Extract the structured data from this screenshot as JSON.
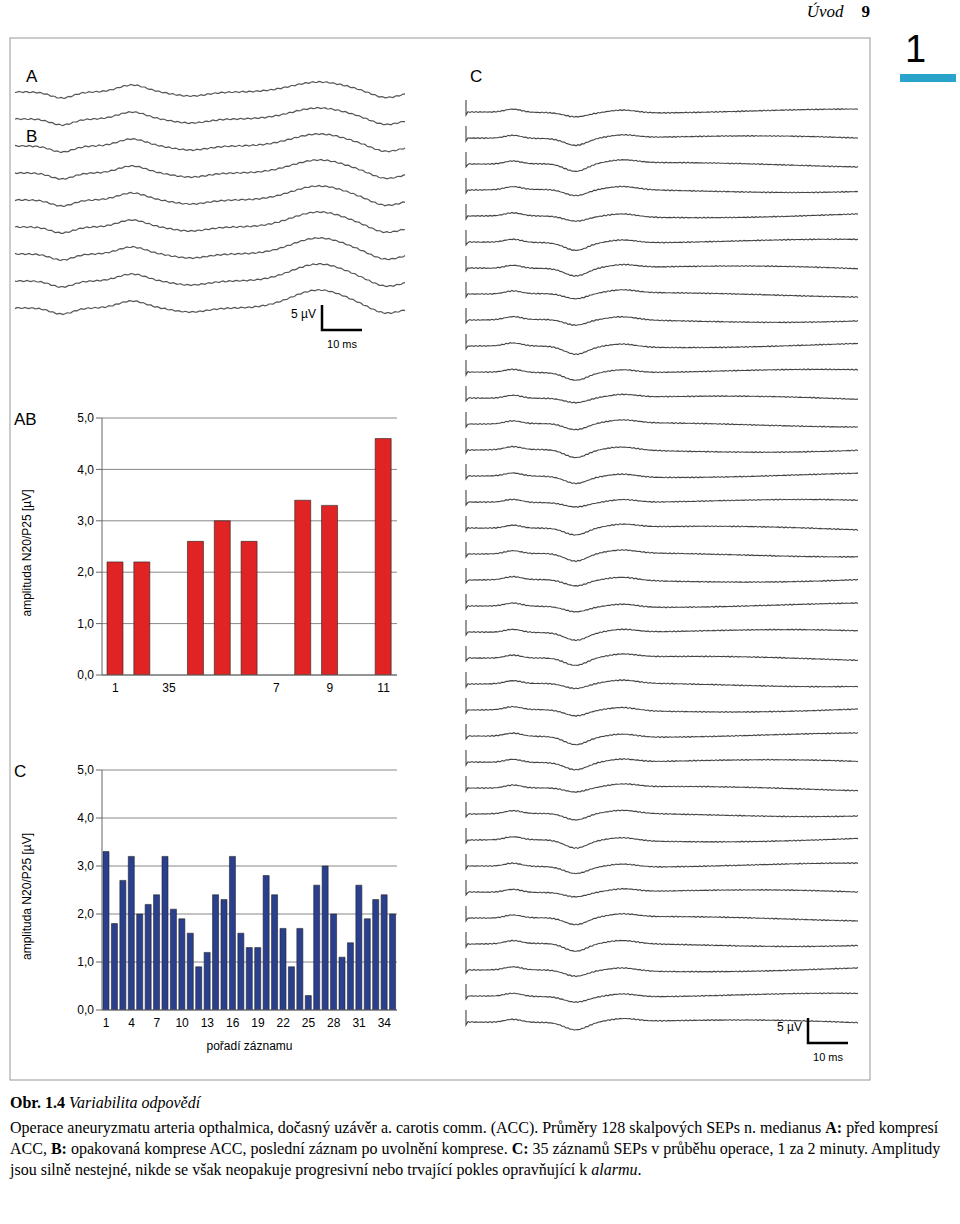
{
  "header": {
    "section": "Úvod",
    "page": "9",
    "chapter": "1"
  },
  "figure": {
    "panels": [
      {
        "label": "A"
      },
      {
        "label": "B"
      },
      {
        "label": "C"
      }
    ],
    "scale_bar": {
      "amplitude": "5 µV",
      "time": "10 ms"
    }
  },
  "chart_data": [
    {
      "type": "bar",
      "title": "AB",
      "y_label": "amplituda N20/P25 [µV]",
      "categories": [
        "1",
        null,
        "35",
        null,
        null,
        null,
        "7",
        null,
        "9",
        null,
        "11"
      ],
      "values": [
        2.2,
        2.2,
        null,
        2.6,
        3.0,
        2.6,
        null,
        3.4,
        3.3,
        null,
        4.6
      ],
      "color": "#e02424",
      "ylim": [
        0,
        5
      ],
      "yticks": [
        {
          "value": 0,
          "label": "0,0"
        },
        {
          "value": 1,
          "label": "1,0"
        },
        {
          "value": 2,
          "label": "2,0"
        },
        {
          "value": 3,
          "label": "3,0"
        },
        {
          "value": 4,
          "label": "4,0"
        },
        {
          "value": 5,
          "label": "5,0"
        }
      ],
      "grid": true
    },
    {
      "type": "bar",
      "title": "C",
      "y_label": "amplituda N20/P25 [µV]",
      "x_label": "pořadí záznamu",
      "categories": [
        "1",
        null,
        null,
        "4",
        null,
        null,
        "7",
        null,
        null,
        "10",
        null,
        null,
        "13",
        null,
        null,
        "16",
        null,
        null,
        "19",
        null,
        null,
        "22",
        null,
        null,
        "25",
        null,
        null,
        "28",
        null,
        null,
        "31",
        null,
        null,
        "34",
        null
      ],
      "values": [
        3.3,
        1.8,
        2.7,
        3.2,
        2.0,
        2.2,
        2.4,
        3.2,
        2.1,
        1.9,
        1.6,
        0.9,
        1.2,
        2.4,
        2.3,
        3.2,
        1.6,
        1.3,
        1.3,
        2.8,
        2.4,
        1.7,
        0.9,
        1.7,
        0.3,
        2.6,
        3.0,
        2.0,
        1.1,
        1.4,
        2.6,
        1.9,
        2.3,
        2.4,
        2.0
      ],
      "color": "#2b3f8f",
      "ylim": [
        0,
        5
      ],
      "yticks": [
        {
          "value": 0,
          "label": "0,0"
        },
        {
          "value": 1,
          "label": "1,0"
        },
        {
          "value": 2,
          "label": "2,0"
        },
        {
          "value": 3,
          "label": "3,0"
        },
        {
          "value": 4,
          "label": "4,0"
        },
        {
          "value": 5,
          "label": "5,0"
        }
      ],
      "grid": true
    }
  ],
  "caption": {
    "label": "Obr. 1.4",
    "title": "Variabilita odpovědí",
    "text": [
      {
        "text": "Operace aneuryzmatu arteria opthalmica, dočasný uzávěr a. carotis comm. (ACC). Průměry 128 skalpových SEPs n. medianus ",
        "style": "normal"
      },
      {
        "text": "A:",
        "style": "bold"
      },
      {
        "text": " před kompresí ACC, ",
        "style": "normal"
      },
      {
        "text": "B:",
        "style": "bold"
      },
      {
        "text": " opakovaná komprese ACC, poslední záznam po uvolnění komprese. ",
        "style": "normal"
      },
      {
        "text": "C:",
        "style": "bold"
      },
      {
        "text": " 35 záznamů SEPs v průběhu operace, 1 za 2 minuty. Amplitudy jsou silně nestejné, nikde se však neopakuje progresivní nebo trvající pokles opravňující k ",
        "style": "normal"
      },
      {
        "text": "alarmu",
        "style": "italic"
      },
      {
        "text": ".",
        "style": "normal"
      }
    ]
  }
}
